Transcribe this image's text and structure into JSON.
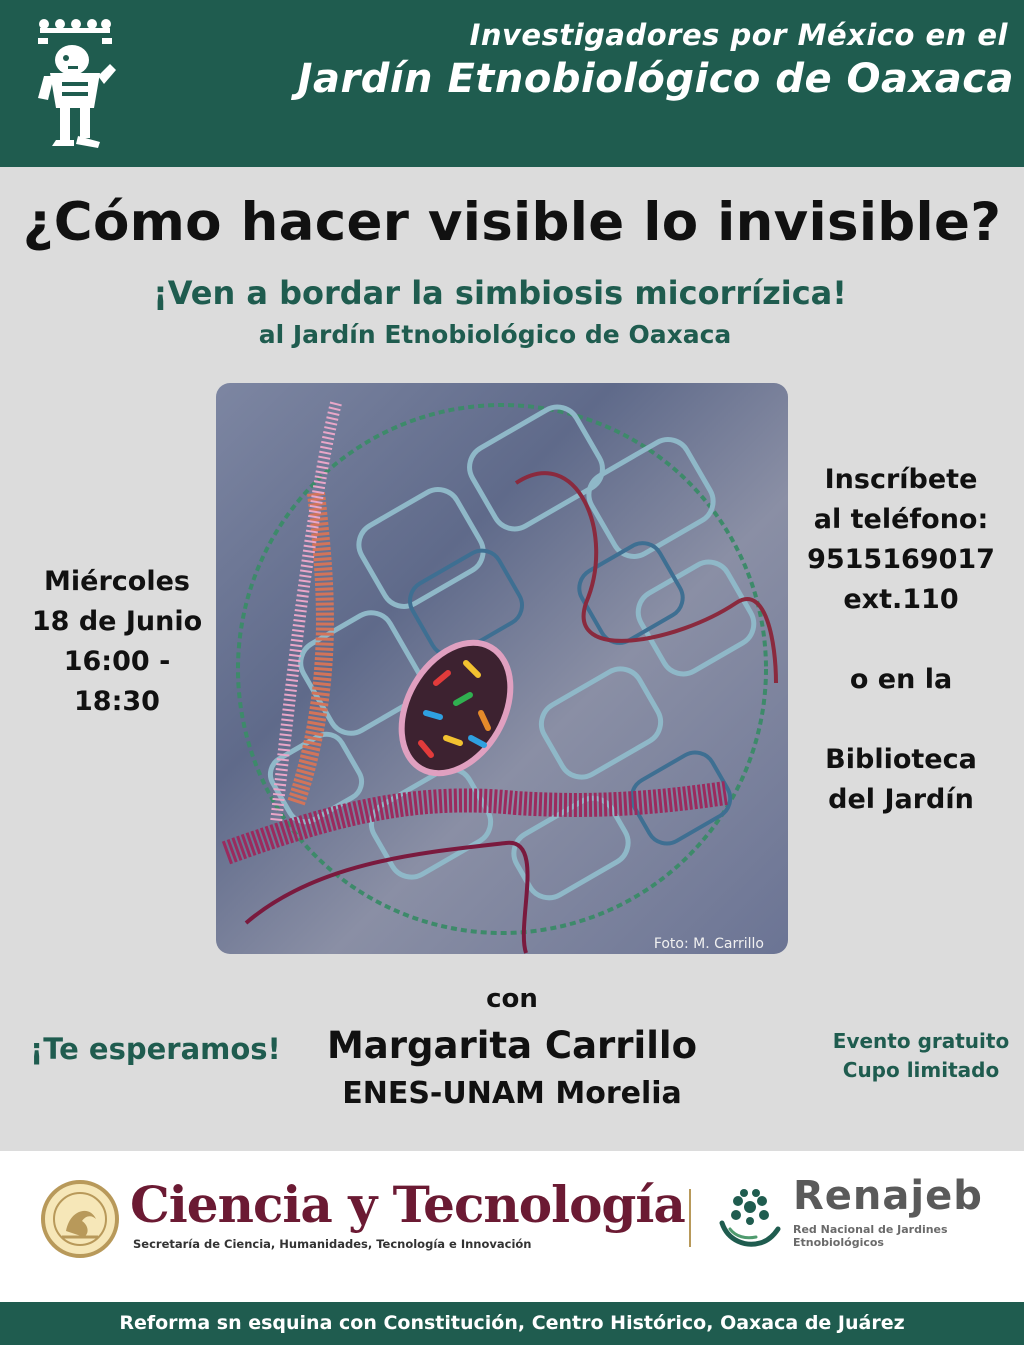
{
  "header": {
    "line1": "Investigadores por México en el",
    "line2": "Jardín Etnobiológico de Oaxaca",
    "logo_icon": "mixtec-figure-logo",
    "background_color": "#1f5c4f"
  },
  "event": {
    "title": "¿Cómo hacer visible lo invisible?",
    "subtitle": "¡Ven a bordar la simbiosis micorrízica!",
    "subtitle2": "al Jardín Etnobiológico de Oaxaca"
  },
  "photo": {
    "credit": "Foto: M. Carrillo"
  },
  "schedule": {
    "day": "Miércoles",
    "date": "18 de Junio",
    "time": "16:00 - 18:30"
  },
  "registration": {
    "line1": "Inscríbete",
    "line2": "al teléfono:",
    "phone": "9515169017",
    "ext": "ext.110",
    "or": "o en la",
    "place1": "Biblioteca",
    "place2": "del Jardín"
  },
  "presenter": {
    "with": "con",
    "name": "Margarita Carrillo",
    "affiliation": "ENES-UNAM Morelia"
  },
  "welcome": "¡Te esperamos!",
  "notes": {
    "line1": "Evento gratuito",
    "line2": "Cupo limitado"
  },
  "sponsors": {
    "ciencia_title": "Ciencia y Tecnología",
    "ciencia_subtitle": "Secretaría de Ciencia, Humanidades, Tecnología e Innovación",
    "seal_icon": "mexico-coat-of-arms-seal",
    "renajeb_title": "Renajeb",
    "renajeb_subtitle": "Red Nacional de Jardines Etnobiológicos",
    "renajeb_icon": "renajeb-flower-hand-icon",
    "ciencia_color": "#6b1a33"
  },
  "footer": {
    "address": "Reforma sn esquina con Constitución, Centro Histórico, Oaxaca de Juárez"
  }
}
